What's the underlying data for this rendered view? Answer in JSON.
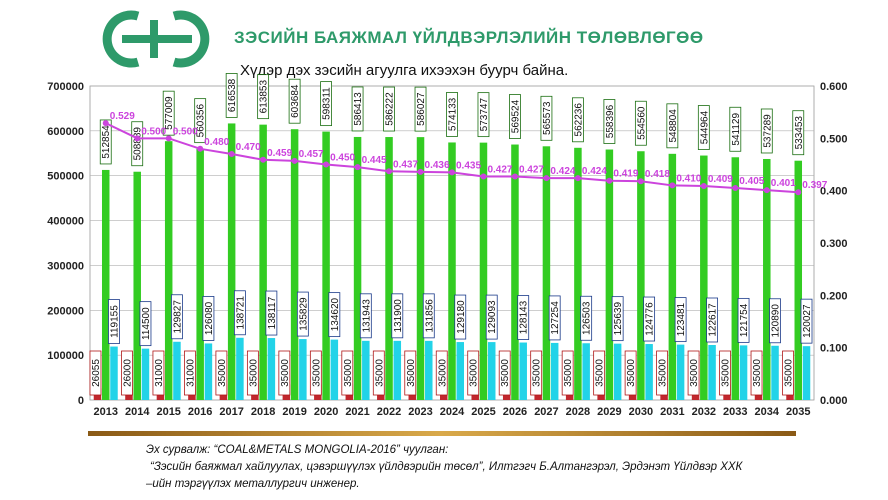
{
  "header": {
    "title": "ЗЭСИЙН БАЯЖМАЛ ҮЙЛДВЭРЛЭЛИЙН ТӨЛӨВЛӨГӨӨ",
    "subtitle": "Хүдэр дэх зэсийн агуулга ихээхэн буурч байна."
  },
  "source": {
    "line1": "Эх сурвалж: “COAL&METALS MONGOLIA-2016” чуулган:",
    "line2": "“Зэсийн баяжмал хайлуулах, цэвэршүүлэх үйлдвэрийн төсөл”, Илтгэгч Б.Алтангэрэл, Эрдэнэт Үйлдвэр ХХК",
    "line3": "–ийн тэргүүлэх металлургич инженер."
  },
  "colors": {
    "green": "#33cc22",
    "cyan": "#22d3e8",
    "red": "#c1272d",
    "line": "#cc44dd",
    "title": "#2e9a6a"
  },
  "chart_data": {
    "type": "bar",
    "categories": [
      "2013",
      "2014",
      "2015",
      "2016",
      "2017",
      "2018",
      "2019",
      "2020",
      "2021",
      "2022",
      "2023",
      "2024",
      "2025",
      "2026",
      "2027",
      "2028",
      "2029",
      "2030",
      "2031",
      "2032",
      "2033",
      "2034",
      "2035"
    ],
    "series": [
      {
        "values": [
          26055,
          26000,
          31000,
          31000,
          35000,
          35000,
          35000,
          35000,
          35000,
          35000,
          35000,
          35000,
          35000,
          35000,
          35000,
          35000,
          35000,
          35000,
          35000,
          35000,
          35000,
          35000,
          35000
        ],
        "axis": "left",
        "color": "red"
      },
      {
        "values": [
          512854,
          508889,
          577009,
          560356,
          616538,
          613853,
          603684,
          598311,
          586413,
          586222,
          586027,
          574133,
          573747,
          569524,
          565573,
          562236,
          558396,
          554560,
          548804,
          544964,
          541129,
          537289,
          533453
        ],
        "axis": "left",
        "color": "green"
      },
      {
        "values": [
          119155,
          114500,
          129827,
          126080,
          138721,
          138117,
          135829,
          134620,
          131943,
          131900,
          131856,
          129180,
          129093,
          128143,
          127254,
          126503,
          125639,
          124776,
          123481,
          122617,
          121754,
          120890,
          120027
        ],
        "axis": "left",
        "color": "cyan"
      },
      {
        "type": "line",
        "values": [
          0.529,
          0.5,
          0.5,
          0.48,
          0.47,
          0.459,
          0.457,
          0.45,
          0.445,
          0.437,
          0.436,
          0.435,
          0.427,
          0.427,
          0.424,
          0.424,
          0.419,
          0.418,
          0.41,
          0.409,
          0.405,
          0.401,
          0.397
        ],
        "axis": "right",
        "color": "line"
      }
    ],
    "ylim": [
      0,
      700000
    ],
    "yticks": [
      "0",
      "100000",
      "200000",
      "300000",
      "400000",
      "500000",
      "600000",
      "700000"
    ],
    "y2lim": [
      0,
      0.6
    ],
    "y2ticks": [
      "0.000",
      "0.100",
      "0.200",
      "0.300",
      "0.400",
      "0.500",
      "0.600"
    ],
    "grid": true
  }
}
